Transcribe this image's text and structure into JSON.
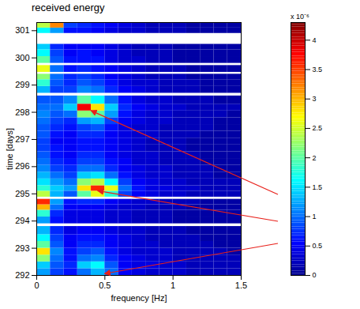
{
  "chart_data": {
    "type": "heatmap",
    "title": "received energy",
    "x_label": "frequency [Hz]",
    "y_label": "time [days]",
    "xlim": [
      0,
      1.5
    ],
    "xticks": [
      0,
      0.5,
      1,
      1.5
    ],
    "ylim": [
      292,
      301.3
    ],
    "yticks": [
      292,
      293,
      294,
      295,
      296,
      297,
      298,
      299,
      300,
      301
    ],
    "x_bins": [
      0,
      0.1,
      0.2,
      0.3,
      0.4,
      0.5,
      0.6,
      0.7,
      0.8,
      0.9,
      1.0,
      1.1,
      1.2,
      1.3,
      1.4,
      1.5
    ],
    "rows": [
      {
        "t": [
          292.0,
          292.25
        ],
        "values": [
          1.2,
          0.8,
          0.6,
          1.0,
          1.3,
          1.0,
          0.5,
          0.4,
          0.3,
          0.3,
          0.3,
          0.2,
          0.2,
          0.2,
          0.2
        ]
      },
      {
        "t": [
          292.25,
          292.5
        ],
        "values": [
          1.4,
          0.9,
          0.7,
          1.4,
          1.6,
          0.9,
          0.5,
          0.4,
          0.4,
          0.3,
          0.3,
          0.2,
          0.2,
          0.2,
          0.2
        ]
      },
      {
        "t": [
          292.5,
          292.75
        ],
        "values": [
          2.2,
          1.0,
          0.6,
          1.0,
          1.1,
          0.7,
          0.5,
          0.4,
          0.3,
          0.3,
          0.2,
          0.2,
          0.2,
          0.2,
          0.2
        ]
      },
      {
        "t": [
          292.75,
          293.0
        ],
        "values": [
          2.8,
          1.1,
          0.6,
          0.8,
          0.9,
          0.6,
          0.4,
          0.3,
          0.3,
          0.3,
          0.2,
          0.2,
          0.2,
          0.2,
          0.1
        ]
      },
      {
        "t": [
          293.0,
          293.25
        ],
        "values": [
          2.0,
          0.9,
          0.5,
          0.7,
          0.7,
          0.5,
          0.4,
          0.3,
          0.3,
          0.2,
          0.2,
          0.2,
          0.2,
          0.1,
          0.1
        ]
      },
      {
        "t": [
          293.25,
          293.5
        ],
        "values": [
          1.6,
          0.8,
          0.5,
          0.6,
          0.6,
          0.5,
          0.4,
          0.3,
          0.2,
          0.2,
          0.2,
          0.2,
          0.1,
          0.1,
          0.1
        ]
      },
      {
        "t": [
          293.5,
          293.8
        ],
        "values": [
          1.3,
          0.7,
          0.4,
          0.5,
          0.5,
          0.4,
          0.3,
          0.3,
          0.2,
          0.2,
          0.2,
          0.1,
          0.1,
          0.1,
          0.1
        ]
      },
      {
        "t": [
          293.9,
          294.15
        ],
        "values": [
          1.2,
          0.6,
          0.4,
          0.4,
          0.4,
          0.3,
          0.3,
          0.2,
          0.2,
          0.2,
          0.1,
          0.1,
          0.1,
          0.1,
          0.1
        ]
      },
      {
        "t": [
          294.15,
          294.4
        ],
        "values": [
          1.8,
          0.7,
          0.4,
          0.4,
          0.4,
          0.3,
          0.3,
          0.2,
          0.2,
          0.2,
          0.1,
          0.1,
          0.1,
          0.1,
          0.1
        ]
      },
      {
        "t": [
          294.4,
          294.6
        ],
        "values": [
          3.0,
          1.0,
          0.5,
          0.5,
          0.5,
          0.4,
          0.3,
          0.3,
          0.2,
          0.2,
          0.2,
          0.1,
          0.1,
          0.1,
          0.1
        ]
      },
      {
        "t": [
          294.6,
          294.8
        ],
        "values": [
          3.6,
          1.2,
          0.6,
          0.7,
          0.7,
          0.5,
          0.4,
          0.3,
          0.3,
          0.2,
          0.2,
          0.2,
          0.1,
          0.1,
          0.1
        ]
      },
      {
        "t": [
          294.88,
          295.1
        ],
        "values": [
          2.4,
          1.3,
          0.9,
          2.0,
          2.6,
          1.8,
          0.8,
          0.5,
          0.4,
          0.3,
          0.3,
          0.2,
          0.2,
          0.2,
          0.2
        ]
      },
      {
        "t": [
          295.1,
          295.3
        ],
        "values": [
          1.8,
          1.4,
          1.2,
          2.8,
          3.6,
          2.6,
          1.0,
          0.6,
          0.4,
          0.4,
          0.3,
          0.3,
          0.2,
          0.2,
          0.2
        ]
      },
      {
        "t": [
          295.3,
          295.55
        ],
        "values": [
          1.5,
          1.2,
          1.0,
          2.2,
          2.4,
          1.6,
          0.8,
          0.5,
          0.4,
          0.3,
          0.3,
          0.2,
          0.2,
          0.2,
          0.2
        ]
      },
      {
        "t": [
          295.55,
          295.8
        ],
        "values": [
          1.3,
          1.0,
          0.8,
          1.4,
          1.5,
          1.0,
          0.6,
          0.4,
          0.3,
          0.3,
          0.2,
          0.2,
          0.2,
          0.1,
          0.1
        ]
      },
      {
        "t": [
          295.8,
          296.05
        ],
        "values": [
          1.1,
          0.8,
          0.7,
          1.0,
          1.0,
          0.7,
          0.5,
          0.4,
          0.3,
          0.3,
          0.2,
          0.2,
          0.2,
          0.1,
          0.1
        ]
      },
      {
        "t": [
          296.05,
          296.3
        ],
        "values": [
          1.0,
          0.7,
          0.6,
          0.8,
          0.8,
          0.6,
          0.5,
          0.3,
          0.3,
          0.2,
          0.2,
          0.2,
          0.1,
          0.1,
          0.1
        ]
      },
      {
        "t": [
          296.3,
          296.55
        ],
        "values": [
          0.9,
          0.6,
          0.5,
          0.7,
          0.7,
          0.5,
          0.4,
          0.3,
          0.3,
          0.2,
          0.2,
          0.2,
          0.1,
          0.1,
          0.1
        ]
      },
      {
        "t": [
          296.55,
          296.8
        ],
        "values": [
          0.8,
          0.6,
          0.5,
          0.6,
          0.6,
          0.5,
          0.4,
          0.3,
          0.2,
          0.2,
          0.2,
          0.1,
          0.1,
          0.1,
          0.1
        ]
      },
      {
        "t": [
          296.8,
          297.05
        ],
        "values": [
          0.8,
          0.5,
          0.5,
          0.6,
          0.6,
          0.5,
          0.4,
          0.3,
          0.2,
          0.2,
          0.2,
          0.1,
          0.1,
          0.1,
          0.1
        ]
      },
      {
        "t": [
          297.05,
          297.3
        ],
        "values": [
          0.9,
          0.6,
          0.5,
          0.7,
          0.7,
          0.5,
          0.4,
          0.3,
          0.3,
          0.2,
          0.2,
          0.2,
          0.1,
          0.1,
          0.1
        ]
      },
      {
        "t": [
          297.3,
          297.55
        ],
        "values": [
          0.9,
          0.7,
          0.6,
          0.8,
          0.9,
          0.6,
          0.4,
          0.3,
          0.3,
          0.2,
          0.2,
          0.2,
          0.2,
          0.1,
          0.1
        ]
      },
      {
        "t": [
          297.55,
          297.8
        ],
        "values": [
          1.0,
          0.8,
          0.7,
          1.2,
          1.3,
          0.8,
          0.5,
          0.4,
          0.3,
          0.3,
          0.2,
          0.2,
          0.2,
          0.1,
          0.1
        ]
      },
      {
        "t": [
          297.8,
          298.05
        ],
        "values": [
          1.1,
          0.9,
          1.0,
          2.2,
          2.0,
          1.2,
          0.6,
          0.4,
          0.3,
          0.3,
          0.2,
          0.2,
          0.2,
          0.2,
          0.1
        ]
      },
      {
        "t": [
          298.05,
          298.3
        ],
        "values": [
          1.0,
          1.0,
          1.4,
          3.8,
          2.8,
          1.4,
          0.7,
          0.5,
          0.4,
          0.3,
          0.3,
          0.2,
          0.2,
          0.2,
          0.2
        ]
      },
      {
        "t": [
          298.3,
          298.6
        ],
        "values": [
          0.9,
          0.9,
          1.1,
          2.0,
          1.6,
          1.0,
          0.6,
          0.4,
          0.3,
          0.3,
          0.2,
          0.2,
          0.2,
          0.1,
          0.1
        ]
      },
      {
        "t": [
          298.7,
          298.95
        ],
        "values": [
          1.3,
          0.8,
          0.8,
          1.1,
          1.0,
          0.7,
          0.5,
          0.4,
          0.3,
          0.2,
          0.2,
          0.2,
          0.1,
          0.1,
          0.1
        ]
      },
      {
        "t": [
          298.95,
          299.2
        ],
        "values": [
          1.8,
          0.9,
          0.7,
          0.9,
          0.8,
          0.6,
          0.4,
          0.3,
          0.3,
          0.2,
          0.2,
          0.2,
          0.1,
          0.1,
          0.1
        ]
      },
      {
        "t": [
          299.2,
          299.4
        ],
        "values": [
          2.2,
          1.0,
          0.7,
          0.8,
          0.7,
          0.5,
          0.4,
          0.3,
          0.2,
          0.2,
          0.2,
          0.1,
          0.1,
          0.1,
          0.1
        ]
      },
      {
        "t": [
          299.47,
          299.72
        ],
        "values": [
          2.6,
          1.0,
          0.6,
          0.7,
          0.6,
          0.5,
          0.4,
          0.3,
          0.2,
          0.2,
          0.2,
          0.1,
          0.1,
          0.1,
          0.1
        ]
      },
      {
        "t": [
          299.8,
          300.05
        ],
        "values": [
          2.0,
          0.9,
          0.6,
          0.6,
          0.6,
          0.4,
          0.3,
          0.3,
          0.2,
          0.2,
          0.1,
          0.1,
          0.1,
          0.1,
          0.1
        ]
      },
      {
        "t": [
          300.05,
          300.3
        ],
        "values": [
          1.6,
          0.8,
          0.5,
          0.6,
          0.5,
          0.4,
          0.3,
          0.2,
          0.2,
          0.2,
          0.1,
          0.1,
          0.1,
          0.1,
          0.1
        ]
      },
      {
        "t": [
          300.3,
          300.5
        ],
        "values": [
          1.4,
          0.7,
          0.5,
          0.5,
          0.5,
          0.4,
          0.3,
          0.2,
          0.2,
          0.2,
          0.1,
          0.1,
          0.1,
          0.1,
          0.1
        ]
      },
      {
        "t": [
          300.9,
          301.1
        ],
        "values": [
          1.6,
          1.2,
          0.6,
          0.6,
          0.5,
          0.4,
          0.3,
          0.3,
          0.2,
          0.2,
          0.2,
          0.1,
          0.1,
          0.1,
          0.1
        ]
      },
      {
        "t": [
          301.1,
          301.3
        ],
        "values": [
          2.4,
          3.2,
          0.8,
          0.7,
          0.6,
          0.5,
          0.4,
          0.3,
          0.2,
          0.2,
          0.2,
          0.1,
          0.1,
          0.1,
          0.1
        ]
      }
    ],
    "colorbar": {
      "label": "x 10⁻⁶",
      "lim": [
        0,
        4.3
      ],
      "ticks": [
        0,
        0.5,
        1,
        1.5,
        2,
        2.5,
        3,
        3.5,
        4
      ]
    },
    "arrows": [
      {
        "x": 0.4,
        "y": 298.05
      },
      {
        "x": 0.45,
        "y": 295.1
      },
      {
        "x": 0.5,
        "y": 292.05
      }
    ]
  }
}
